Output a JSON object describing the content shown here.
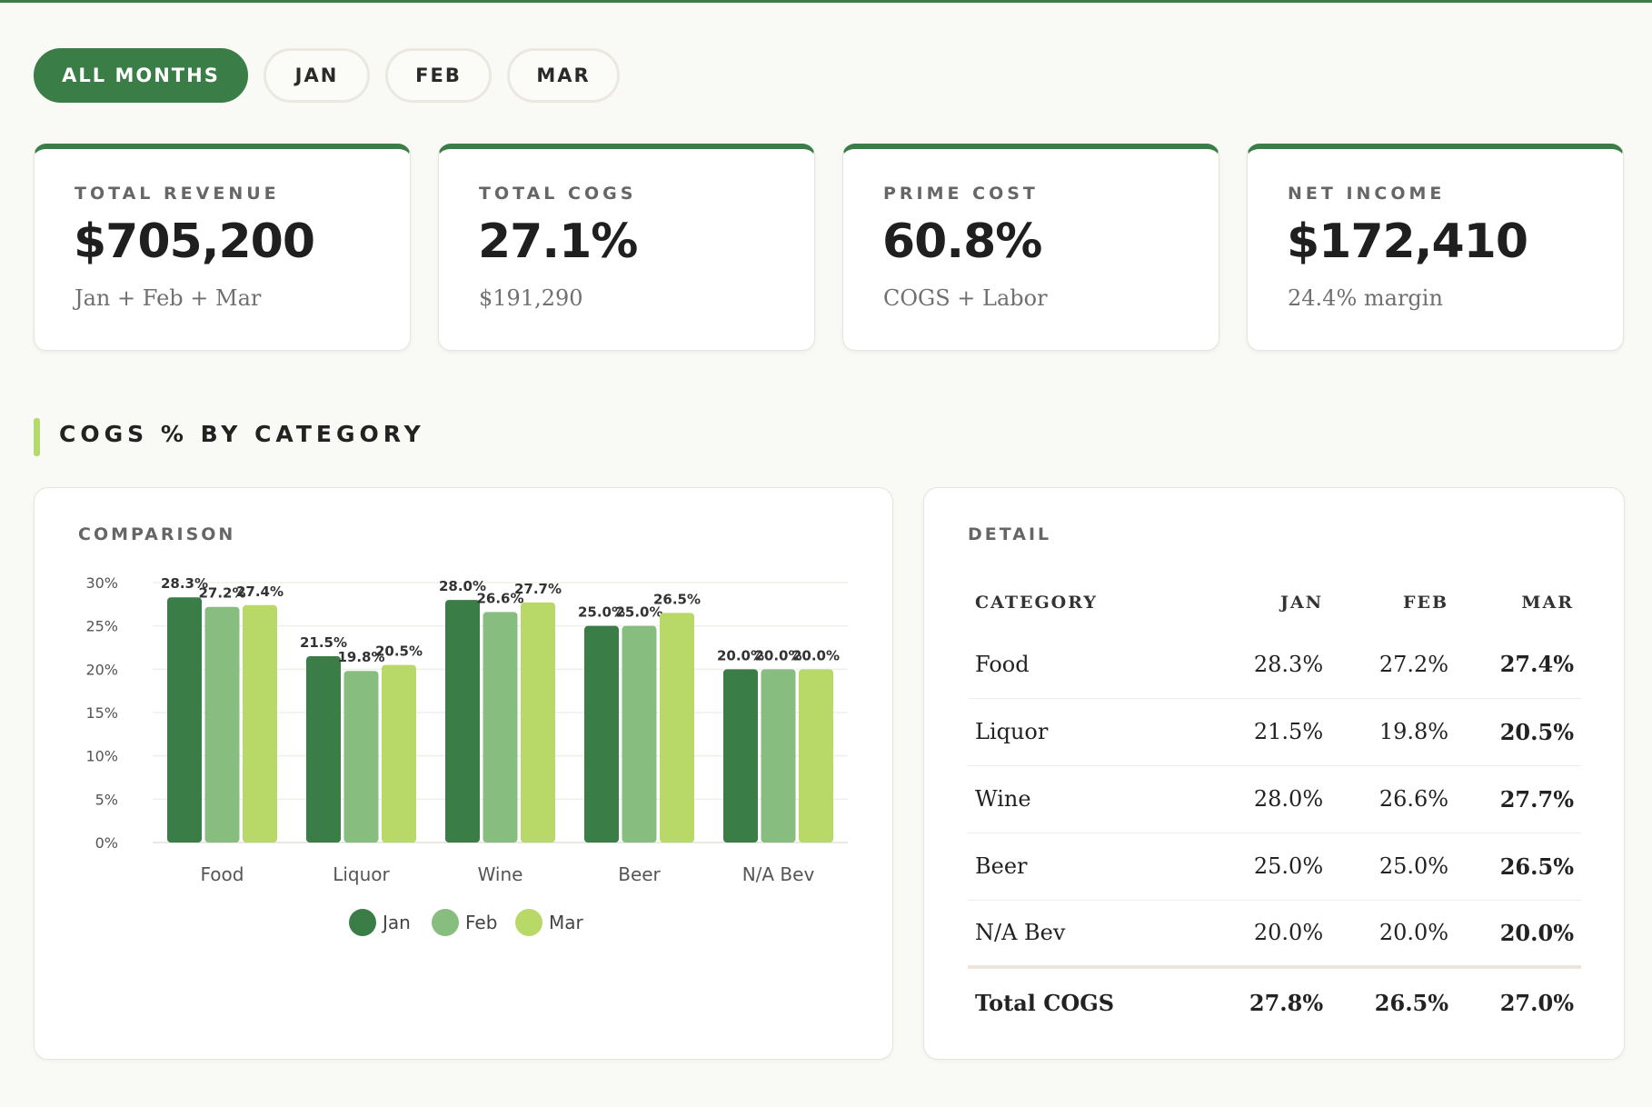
{
  "filters": [
    {
      "label": "ALL MONTHS",
      "active": true
    },
    {
      "label": "JAN",
      "active": false
    },
    {
      "label": "FEB",
      "active": false
    },
    {
      "label": "MAR",
      "active": false
    }
  ],
  "kpis": [
    {
      "label": "TOTAL REVENUE",
      "value": "$705,200",
      "sub": "Jan + Feb + Mar"
    },
    {
      "label": "TOTAL COGS",
      "value": "27.1%",
      "sub": "$191,290"
    },
    {
      "label": "PRIME COST",
      "value": "60.8%",
      "sub": "COGS + Labor"
    },
    {
      "label": "NET INCOME",
      "value": "$172,410",
      "sub": "24.4% margin"
    }
  ],
  "section": {
    "title": "COGS % BY CATEGORY"
  },
  "comparison": {
    "label": "COMPARISON"
  },
  "detail": {
    "label": "DETAIL",
    "headers": [
      "CATEGORY",
      "JAN",
      "FEB",
      "MAR"
    ],
    "rows": [
      [
        "Food",
        "28.3%",
        "27.2%",
        "27.4%"
      ],
      [
        "Liquor",
        "21.5%",
        "19.8%",
        "20.5%"
      ],
      [
        "Wine",
        "28.0%",
        "26.6%",
        "27.7%"
      ],
      [
        "Beer",
        "25.0%",
        "25.0%",
        "26.5%"
      ],
      [
        "N/A Bev",
        "20.0%",
        "20.0%",
        "20.0%"
      ]
    ],
    "total": [
      "Total COGS",
      "27.8%",
      "26.5%",
      "27.0%"
    ]
  },
  "colors": {
    "jan": "#3a7d47",
    "feb": "#88bd80",
    "mar": "#b8d967",
    "accent": "#3a7d47"
  },
  "chart_data": {
    "type": "bar",
    "title": "COMPARISON",
    "categories": [
      "Food",
      "Liquor",
      "Wine",
      "Beer",
      "N/A Bev"
    ],
    "series": [
      {
        "name": "Jan",
        "values": [
          28.3,
          21.5,
          28.0,
          25.0,
          20.0
        ]
      },
      {
        "name": "Feb",
        "values": [
          27.2,
          19.8,
          26.6,
          25.0,
          20.0
        ]
      },
      {
        "name": "Mar",
        "values": [
          27.4,
          20.5,
          27.7,
          26.5,
          20.0
        ]
      }
    ],
    "yticks": [
      "30%",
      "25%",
      "20%",
      "15%",
      "10%",
      "5%",
      "0%"
    ],
    "ylim": [
      0,
      30
    ],
    "xlabel": "",
    "ylabel": "",
    "legend": "bottom-center",
    "grid": true
  }
}
